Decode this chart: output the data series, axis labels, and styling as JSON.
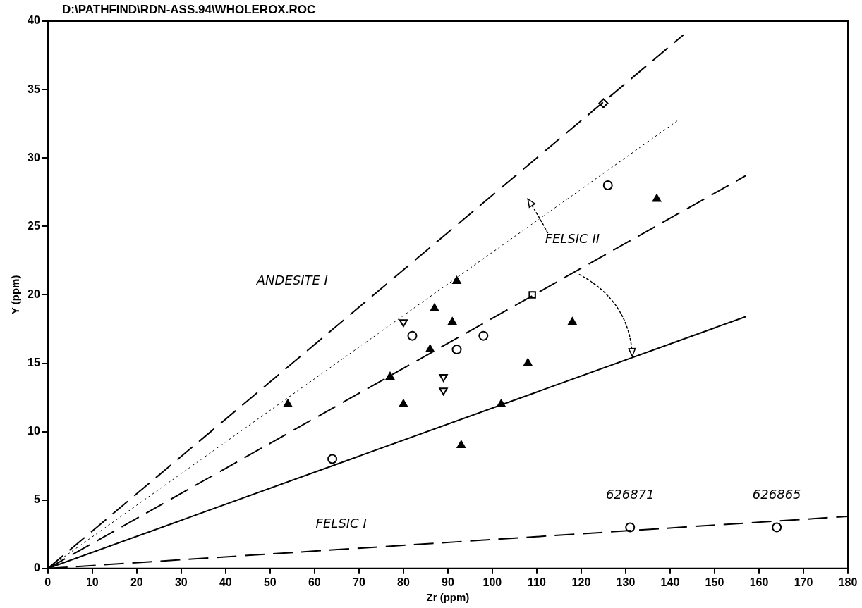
{
  "chart_data": {
    "type": "scatter",
    "title": "D:\\PATHFIND\\RDN-ASS.94\\WHOLEROX.ROC",
    "xlabel": "Zr (ppm)",
    "ylabel": "Y (ppm)",
    "xlim": [
      0,
      180
    ],
    "xticks": [
      0,
      10,
      20,
      30,
      40,
      50,
      60,
      70,
      80,
      90,
      100,
      110,
      120,
      130,
      140,
      150,
      160,
      170,
      180
    ],
    "ylim": [
      0,
      40
    ],
    "yticks": [
      0,
      5,
      10,
      15,
      20,
      25,
      30,
      35,
      40
    ],
    "grid": false,
    "legend": false,
    "series": [
      {
        "type": "line",
        "color": "#000000",
        "line_style": "dashed",
        "marker": "none",
        "x": [
          0,
          143
        ],
        "values": [
          0,
          39
        ]
      },
      {
        "type": "line",
        "color": "#000000",
        "line_style": "dotted",
        "marker": "none",
        "x": [
          0,
          142
        ],
        "values": [
          0,
          32.8
        ]
      },
      {
        "type": "line",
        "color": "#000000",
        "line_style": "dashed",
        "marker": "none",
        "x": [
          0,
          157
        ],
        "values": [
          0,
          28.7
        ]
      },
      {
        "type": "line",
        "color": "#000000",
        "line_style": "solid",
        "marker": "none",
        "x": [
          0,
          157
        ],
        "values": [
          0,
          18.4
        ]
      },
      {
        "type": "line",
        "color": "#000000",
        "line_style": "dashed",
        "marker": "none",
        "x": [
          0,
          180
        ],
        "values": [
          0,
          3.8
        ]
      },
      {
        "type": "scatter",
        "color": "#000000",
        "marker": "triangle",
        "x": [
          54,
          77,
          80,
          86,
          87,
          91,
          92,
          93,
          102,
          108,
          118,
          137
        ],
        "values": [
          12,
          14,
          12,
          16,
          19,
          18,
          21,
          9,
          12,
          15,
          18,
          27
        ]
      },
      {
        "type": "scatter",
        "color": "#000000",
        "marker": "triangle-down",
        "x": [
          80,
          89,
          89
        ],
        "values": [
          18,
          14,
          13
        ]
      },
      {
        "type": "scatter",
        "color": "#000000",
        "marker": "circle",
        "x": [
          64,
          82,
          92,
          98,
          126,
          131,
          164
        ],
        "values": [
          8,
          17,
          16,
          17,
          28,
          3,
          3
        ]
      },
      {
        "type": "scatter",
        "color": "#000000",
        "marker": "square",
        "x": [
          109
        ],
        "values": [
          20
        ]
      },
      {
        "type": "scatter",
        "color": "#000000",
        "marker": "diamond",
        "x": [
          125
        ],
        "values": [
          34
        ]
      }
    ],
    "annotations": [
      "ANDESITE I",
      "FELSIC II",
      "FELSIC I",
      {
        "text": "626871",
        "x": 131,
        "y": 3
      },
      {
        "text": "626865",
        "x": 164,
        "y": 3
      }
    ]
  }
}
